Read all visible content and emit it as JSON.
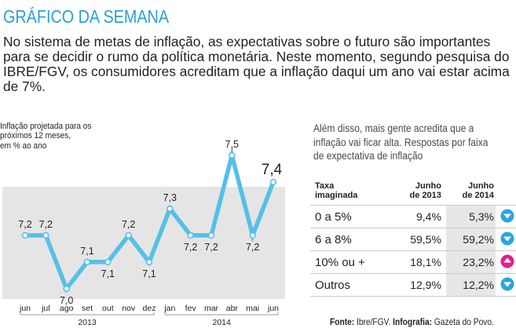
{
  "header": {
    "section_title": "GRÁFICO DA SEMANA",
    "intro_text": "No sistema de metas de inflação, as expectativas sobre o futuro são importantes para se decidir o rumo da política monetária. Neste momento, segundo pesquisa do IBRE/FGV, os consumidores acreditam que a inflação daqui um ano vai estar acima de 7%."
  },
  "colors": {
    "accent": "#2a9fd6",
    "line": "#54c0e8",
    "plot_bg": "#e5e5e5",
    "down_icon": "#2aa6dd",
    "up_icon": "#e0218a",
    "highlight_col": "#e7e7e7"
  },
  "chart_data": {
    "type": "line",
    "title": "Inflação projetada para os próximos 12 meses, em % ao ano",
    "caption_lines": [
      "Inflação projetada para os",
      "próximos 12 meses,",
      "em % ao ano"
    ],
    "categories": [
      "jun",
      "jul",
      "ago",
      "set",
      "out",
      "nov",
      "dez",
      "jan",
      "fev",
      "mar",
      "abr",
      "mai",
      "jun"
    ],
    "values": [
      7.2,
      7.2,
      7.0,
      7.1,
      7.1,
      7.2,
      7.1,
      7.3,
      7.2,
      7.2,
      7.5,
      7.2,
      7.4
    ],
    "labels": [
      "7,2",
      "7,2",
      "7,0",
      "7,1",
      "7,1",
      "7,2",
      "7,1",
      "7,3",
      "7,2",
      "7,2",
      "7,5",
      "7,2",
      "7,4"
    ],
    "year_groups": [
      {
        "label": "2013",
        "from": 0,
        "to": 6
      },
      {
        "label": "2014",
        "from": 7,
        "to": 12
      }
    ],
    "ylim": [
      6.97,
      7.55
    ],
    "xlabel": "",
    "ylabel": "",
    "grid": false
  },
  "side_panel": {
    "note": "Além disso, mais gente acredita que a inflação vai ficar alta. Respostas por faixa de expectativa de inflação",
    "note_lines": [
      "Além disso, mais gente acredita que a",
      "inflação vai ficar alta. Respostas por faixa",
      "de expectativa de inflação"
    ],
    "table": {
      "headers": [
        {
          "line1": "Taxa",
          "line2": "imaginada"
        },
        {
          "line1": "Junho",
          "line2": "de 2013"
        },
        {
          "line1": "Junho",
          "line2": "de 2014"
        }
      ],
      "rows": [
        {
          "range": "0 a 5%",
          "jun2013": "9,4%",
          "jun2014": "5,3%",
          "trend": "down"
        },
        {
          "range": "6 a 8%",
          "jun2013": "59,5%",
          "jun2014": "59,2%",
          "trend": "down"
        },
        {
          "range": "10% ou +",
          "jun2013": "18,1%",
          "jun2014": "23,2%",
          "trend": "up"
        },
        {
          "range": "Outros",
          "jun2013": "12,9%",
          "jun2014": "12,2%",
          "trend": "down"
        }
      ]
    }
  },
  "footer": {
    "source_label": "Fonte:",
    "source_value": " Ibre/FGV. ",
    "infographic_label": "Infografia:",
    "infographic_value": " Gazeta do Povo."
  }
}
